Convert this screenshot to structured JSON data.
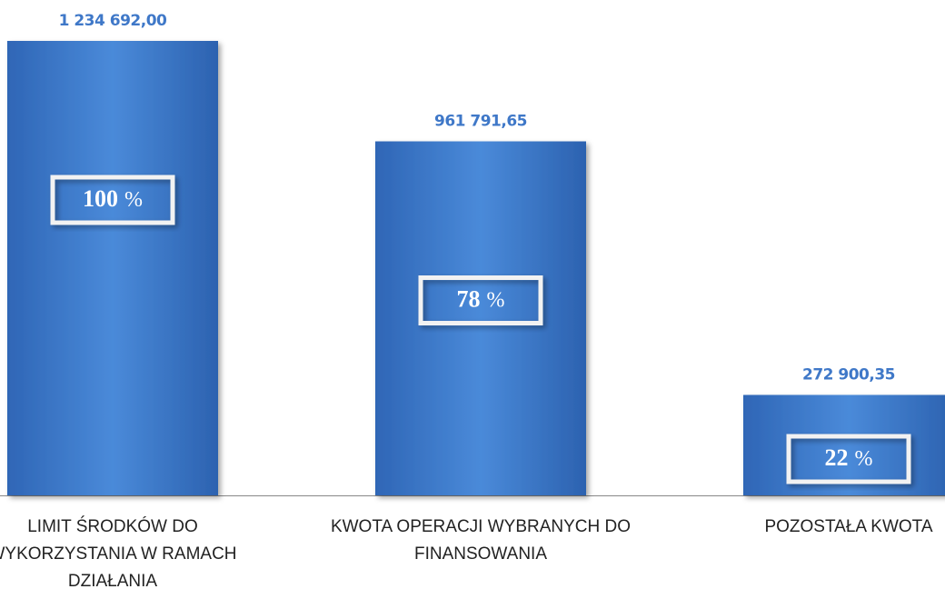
{
  "chart_data": {
    "type": "bar",
    "categories": [
      "LIMIT ŚRODKÓW DO WYKORZYSTANIA W RAMACH DZIAŁANIA",
      "KWOTA OPERACJI WYBRANYCH DO FINANSOWANIA",
      "POZOSTAŁA KWOTA"
    ],
    "values": [
      1234692.0,
      961791.65,
      272900.35
    ],
    "value_labels": [
      "1 234 692,00",
      "961 791,65",
      "272 900,35"
    ],
    "percents": [
      100,
      78,
      22
    ],
    "percent_sign": "%",
    "color": "#3a7bd0"
  }
}
